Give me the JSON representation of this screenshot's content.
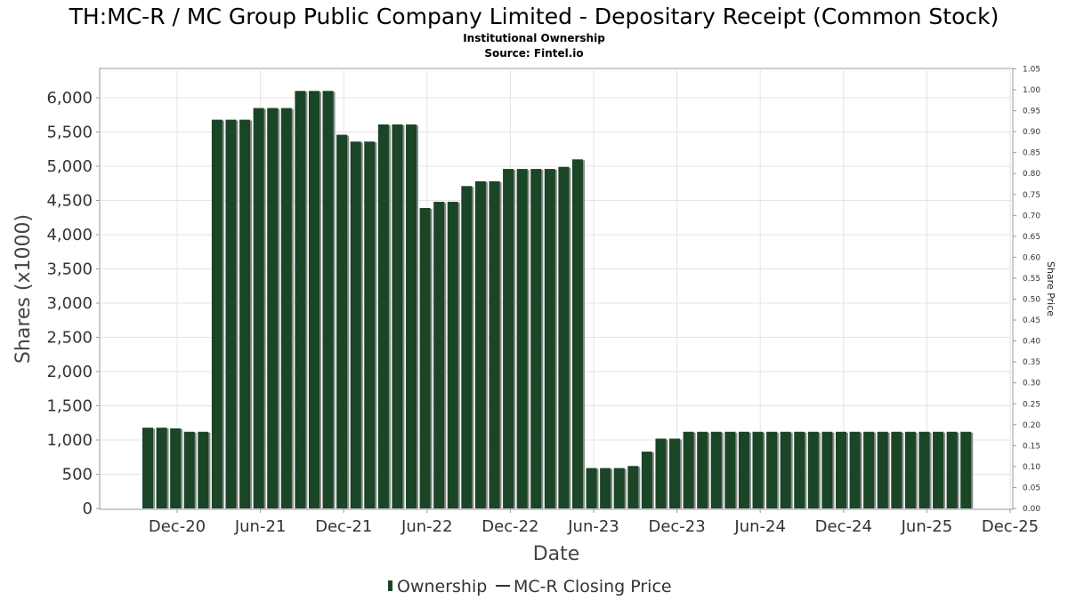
{
  "chart_data": {
    "type": "bar",
    "title": "TH:MC-R / MC Group Public Company Limited - Depositary Receipt (Common Stock)",
    "subtitle": "Institutional Ownership",
    "source": "Source: Fintel.io",
    "xlabel": "Date",
    "ylabel": "Shares (x1000)",
    "y2label": "Share Price",
    "ylim": [
      0,
      6200
    ],
    "y2lim": [
      0,
      1.05
    ],
    "grid": true,
    "legend_position": "bottom",
    "y_ticks": [
      "0",
      "500",
      "1,000",
      "1,500",
      "2,000",
      "2,500",
      "3,000",
      "3,500",
      "4,000",
      "4,500",
      "5,000",
      "5,500",
      "6,000"
    ],
    "y2_ticks": [
      "0.00",
      "0.05",
      "0.10",
      "0.15",
      "0.20",
      "0.25",
      "0.30",
      "0.35",
      "0.40",
      "0.45",
      "0.50",
      "0.55",
      "0.60",
      "0.65",
      "0.70",
      "0.75",
      "0.80",
      "0.85",
      "0.90",
      "0.95",
      "1.00",
      "1.05"
    ],
    "x_ticks": [
      "Dec-20",
      "Jun-21",
      "Dec-21",
      "Jun-22",
      "Dec-22",
      "Jun-23",
      "Dec-23",
      "Jun-24",
      "Dec-24",
      "Jun-25",
      "Dec-25"
    ],
    "series": [
      {
        "name": "Ownership",
        "color": "#1a4526",
        "values": [
          1180,
          1180,
          1170,
          1120,
          1120,
          5680,
          5680,
          5680,
          5850,
          5850,
          5850,
          6100,
          6100,
          6100,
          5460,
          5360,
          5360,
          5610,
          5610,
          5610,
          4390,
          4480,
          4480,
          4710,
          4780,
          4780,
          4960,
          4960,
          4960,
          4960,
          4990,
          5100,
          590,
          590,
          590,
          620,
          830,
          1020,
          1020,
          1120,
          1120,
          1120,
          1120,
          1120,
          1120,
          1120,
          1120,
          1120,
          1120,
          1120,
          1120,
          1120,
          1120,
          1120,
          1120,
          1120,
          1120,
          1120,
          1120,
          1120
        ]
      },
      {
        "name": "MC-R Closing Price",
        "color": "#333333",
        "values": []
      }
    ]
  }
}
